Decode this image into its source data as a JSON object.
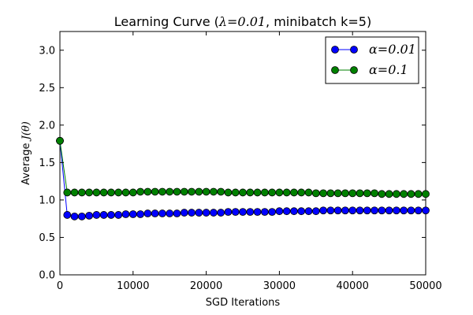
{
  "chart_data": {
    "type": "line",
    "title_prefix": "Learning Curve (",
    "title_math": "λ=0.01",
    "title_suffix": ", minibatch k=5)",
    "xlabel": "SGD Iterations",
    "ylabel_prefix": "Average ",
    "ylabel_math": "J(θ)",
    "xlim": [
      0,
      50000
    ],
    "ylim": [
      0.0,
      3.25
    ],
    "xticks": [
      0,
      10000,
      20000,
      30000,
      40000,
      50000
    ],
    "xtick_labels": [
      "0",
      "10000",
      "20000",
      "30000",
      "40000",
      "50000"
    ],
    "yticks": [
      0.0,
      0.5,
      1.0,
      1.5,
      2.0,
      2.5,
      3.0
    ],
    "ytick_labels": [
      "0.0",
      "0.5",
      "1.0",
      "1.5",
      "2.0",
      "2.5",
      "3.0"
    ],
    "grid": false,
    "legend_position": "top-right",
    "x": [
      0,
      1000,
      2000,
      3000,
      4000,
      5000,
      6000,
      7000,
      8000,
      9000,
      10000,
      11000,
      12000,
      13000,
      14000,
      15000,
      16000,
      17000,
      18000,
      19000,
      20000,
      21000,
      22000,
      23000,
      24000,
      25000,
      26000,
      27000,
      28000,
      29000,
      30000,
      31000,
      32000,
      33000,
      34000,
      35000,
      36000,
      37000,
      38000,
      39000,
      40000,
      41000,
      42000,
      43000,
      44000,
      45000,
      46000,
      47000,
      48000,
      49000,
      50000
    ],
    "series": [
      {
        "name": "α=0.01",
        "color": "#0000ff",
        "values": [
          1.79,
          0.8,
          0.78,
          0.78,
          0.79,
          0.8,
          0.8,
          0.8,
          0.8,
          0.81,
          0.81,
          0.81,
          0.82,
          0.82,
          0.82,
          0.82,
          0.82,
          0.83,
          0.83,
          0.83,
          0.83,
          0.83,
          0.83,
          0.84,
          0.84,
          0.84,
          0.84,
          0.84,
          0.84,
          0.84,
          0.85,
          0.85,
          0.85,
          0.85,
          0.85,
          0.85,
          0.86,
          0.86,
          0.86,
          0.86,
          0.86,
          0.86,
          0.86,
          0.86,
          0.86,
          0.86,
          0.86,
          0.86,
          0.86,
          0.86,
          0.86
        ]
      },
      {
        "name": "α=0.1",
        "color": "#008000",
        "values": [
          1.79,
          1.1,
          1.1,
          1.1,
          1.1,
          1.1,
          1.1,
          1.1,
          1.1,
          1.1,
          1.1,
          1.11,
          1.11,
          1.11,
          1.11,
          1.11,
          1.11,
          1.11,
          1.11,
          1.11,
          1.11,
          1.11,
          1.11,
          1.1,
          1.1,
          1.1,
          1.1,
          1.1,
          1.1,
          1.1,
          1.1,
          1.1,
          1.1,
          1.1,
          1.1,
          1.09,
          1.09,
          1.09,
          1.09,
          1.09,
          1.09,
          1.09,
          1.09,
          1.09,
          1.08,
          1.08,
          1.08,
          1.08,
          1.08,
          1.08,
          1.08
        ]
      }
    ]
  }
}
